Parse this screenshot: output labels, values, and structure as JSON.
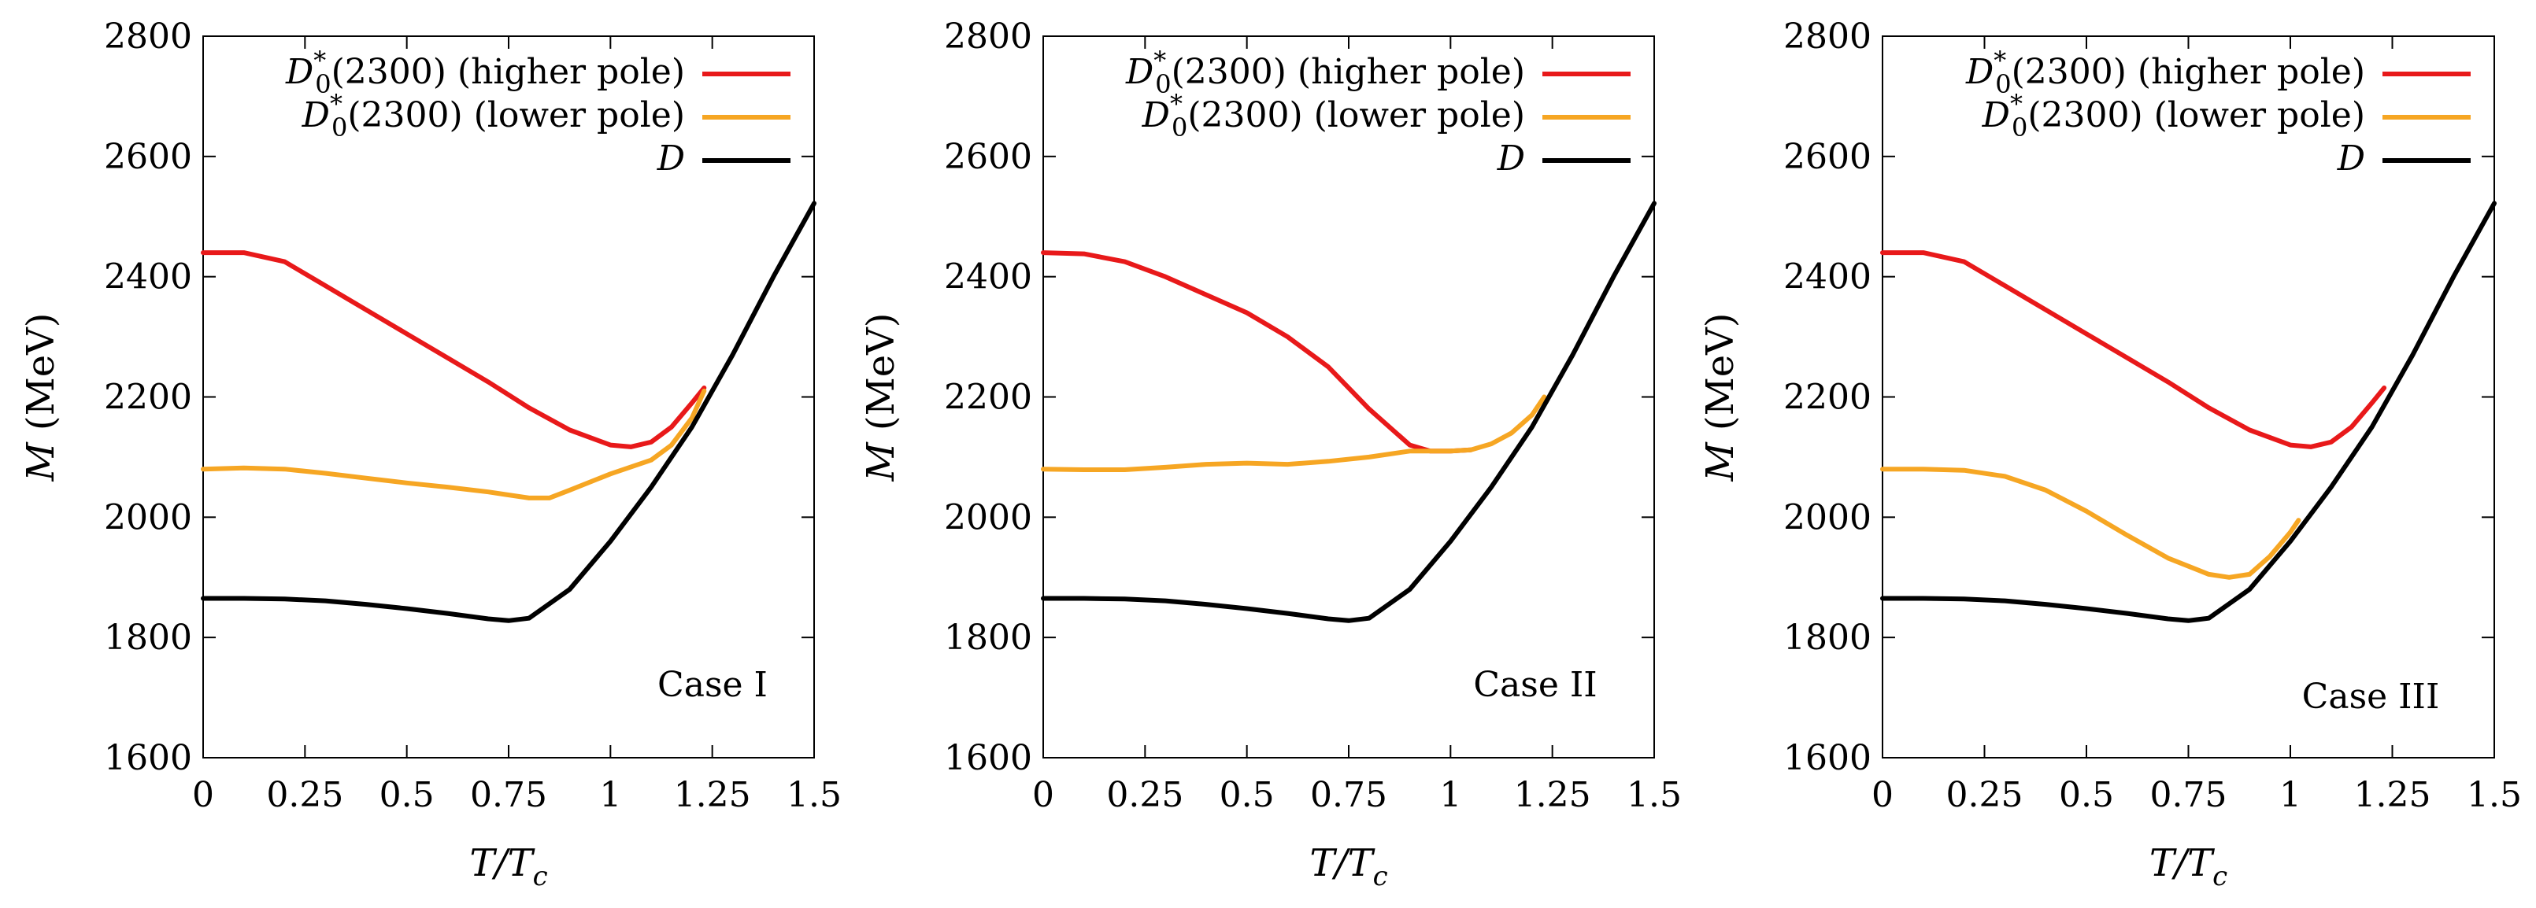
{
  "chart_data": [
    {
      "type": "line",
      "panel": "Case I",
      "annotation": "Case I",
      "xlabel": "T/T_c",
      "ylabel": "M (MeV)",
      "xlim": [
        0,
        1.5
      ],
      "ylim": [
        1600,
        2800
      ],
      "xticks": [
        "0",
        "0.25",
        "0.5",
        "0.75",
        "1",
        "1.25",
        "1.5"
      ],
      "yticks": [
        "1600",
        "1800",
        "2000",
        "2200",
        "2400",
        "2600",
        "2800"
      ],
      "legend_position": "top-right",
      "series": [
        {
          "name": "D_0^*(2300) (higher pole)",
          "legend_label": "D*0(2300) (higher pole)",
          "color": "#e8191a",
          "x": [
            0,
            0.1,
            0.2,
            0.3,
            0.4,
            0.5,
            0.6,
            0.7,
            0.8,
            0.9,
            1.0,
            1.05,
            1.1,
            1.15,
            1.2,
            1.23
          ],
          "y": [
            2440,
            2440,
            2425,
            2385,
            2345,
            2305,
            2265,
            2225,
            2182,
            2145,
            2120,
            2117,
            2125,
            2150,
            2190,
            2215
          ]
        },
        {
          "name": "D_0^*(2300) (lower pole)",
          "legend_label": "D*0(2300) (lower pole)",
          "color": "#f6a623",
          "x": [
            0,
            0.1,
            0.2,
            0.3,
            0.4,
            0.5,
            0.6,
            0.7,
            0.8,
            0.85,
            0.9,
            1.0,
            1.1,
            1.15,
            1.2,
            1.23
          ],
          "y": [
            2080,
            2082,
            2080,
            2073,
            2065,
            2057,
            2050,
            2042,
            2032,
            2032,
            2045,
            2072,
            2095,
            2120,
            2165,
            2210
          ]
        },
        {
          "name": "D",
          "legend_label": "D",
          "color": "#000000",
          "x": [
            0,
            0.1,
            0.2,
            0.3,
            0.4,
            0.5,
            0.6,
            0.7,
            0.75,
            0.8,
            0.9,
            1.0,
            1.1,
            1.2,
            1.3,
            1.4,
            1.5
          ],
          "y": [
            1865,
            1865,
            1864,
            1861,
            1855,
            1848,
            1840,
            1831,
            1828,
            1832,
            1880,
            1960,
            2050,
            2150,
            2270,
            2400,
            2522
          ]
        }
      ]
    },
    {
      "type": "line",
      "panel": "Case II",
      "annotation": "Case II",
      "xlabel": "T/T_c",
      "ylabel": "M (MeV)",
      "xlim": [
        0,
        1.5
      ],
      "ylim": [
        1600,
        2800
      ],
      "xticks": [
        "0",
        "0.25",
        "0.5",
        "0.75",
        "1",
        "1.25",
        "1.5"
      ],
      "yticks": [
        "1600",
        "1800",
        "2000",
        "2200",
        "2400",
        "2600",
        "2800"
      ],
      "legend_position": "top-right",
      "series": [
        {
          "name": "D_0^*(2300) (higher pole)",
          "legend_label": "D*0(2300) (higher pole)",
          "color": "#e8191a",
          "x": [
            0,
            0.1,
            0.2,
            0.3,
            0.4,
            0.5,
            0.6,
            0.7,
            0.8,
            0.9,
            0.95,
            1.0,
            1.05
          ],
          "y": [
            2440,
            2438,
            2425,
            2400,
            2370,
            2340,
            2300,
            2250,
            2180,
            2120,
            2110,
            2110,
            2112
          ]
        },
        {
          "name": "D_0^*(2300) (lower pole)",
          "legend_label": "D*0(2300) (lower pole)",
          "color": "#f6a623",
          "x": [
            0,
            0.1,
            0.2,
            0.3,
            0.4,
            0.5,
            0.6,
            0.7,
            0.8,
            0.9,
            1.0,
            1.05,
            1.1,
            1.15,
            1.2,
            1.23
          ],
          "y": [
            2080,
            2079,
            2079,
            2083,
            2088,
            2090,
            2088,
            2093,
            2100,
            2110,
            2110,
            2112,
            2122,
            2140,
            2170,
            2200
          ]
        },
        {
          "name": "D",
          "legend_label": "D",
          "color": "#000000",
          "x": [
            0,
            0.1,
            0.2,
            0.3,
            0.4,
            0.5,
            0.6,
            0.7,
            0.75,
            0.8,
            0.9,
            1.0,
            1.1,
            1.2,
            1.3,
            1.4,
            1.5
          ],
          "y": [
            1865,
            1865,
            1864,
            1861,
            1855,
            1848,
            1840,
            1831,
            1828,
            1832,
            1880,
            1960,
            2050,
            2150,
            2270,
            2400,
            2522
          ]
        }
      ]
    },
    {
      "type": "line",
      "panel": "Case III",
      "annotation": "Case III",
      "xlabel": "T/T_c",
      "ylabel": "M (MeV)",
      "xlim": [
        0,
        1.5
      ],
      "ylim": [
        1600,
        2800
      ],
      "xticks": [
        "0",
        "0.25",
        "0.5",
        "0.75",
        "1",
        "1.25",
        "1.5"
      ],
      "yticks": [
        "1600",
        "1800",
        "2000",
        "2200",
        "2400",
        "2600",
        "2800"
      ],
      "legend_position": "top-right",
      "series": [
        {
          "name": "D_0^*(2300) (higher pole)",
          "legend_label": "D*0(2300) (higher pole)",
          "color": "#e8191a",
          "x": [
            0,
            0.1,
            0.2,
            0.3,
            0.4,
            0.5,
            0.6,
            0.7,
            0.8,
            0.9,
            1.0,
            1.05,
            1.1,
            1.15,
            1.2,
            1.23
          ],
          "y": [
            2440,
            2440,
            2425,
            2385,
            2345,
            2305,
            2265,
            2225,
            2182,
            2145,
            2120,
            2117,
            2125,
            2150,
            2190,
            2215
          ]
        },
        {
          "name": "D_0^*(2300) (lower pole)",
          "legend_label": "D*0(2300) (lower pole)",
          "color": "#f6a623",
          "x": [
            0,
            0.1,
            0.2,
            0.3,
            0.4,
            0.5,
            0.6,
            0.7,
            0.8,
            0.85,
            0.9,
            0.95,
            1.0,
            1.02
          ],
          "y": [
            2080,
            2080,
            2078,
            2068,
            2045,
            2010,
            1970,
            1932,
            1905,
            1900,
            1905,
            1935,
            1975,
            1995
          ]
        },
        {
          "name": "D",
          "legend_label": "D",
          "color": "#000000",
          "x": [
            0,
            0.1,
            0.2,
            0.3,
            0.4,
            0.5,
            0.6,
            0.7,
            0.75,
            0.8,
            0.9,
            1.0,
            1.1,
            1.2,
            1.3,
            1.4,
            1.5
          ],
          "y": [
            1865,
            1865,
            1864,
            1861,
            1855,
            1848,
            1840,
            1831,
            1828,
            1832,
            1880,
            1960,
            2050,
            2150,
            2270,
            2400,
            2522
          ]
        }
      ]
    }
  ]
}
